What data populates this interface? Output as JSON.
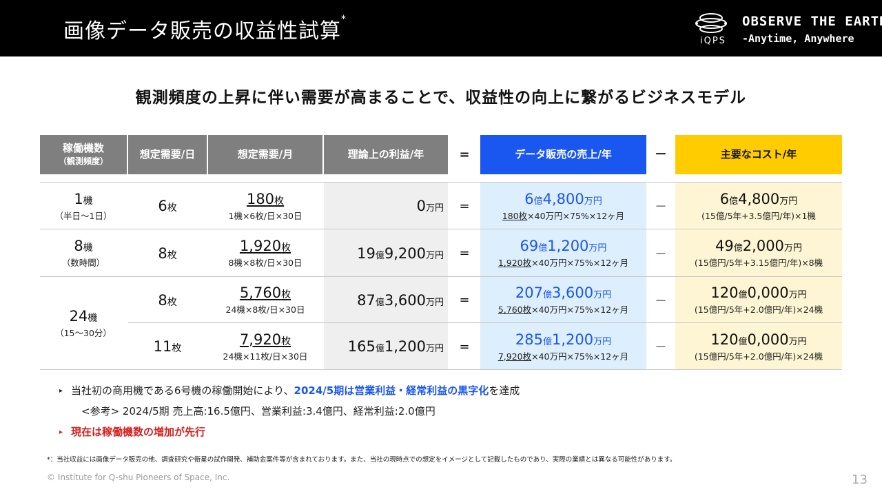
{
  "header": {
    "title": "画像データ販売の収益性試算",
    "title_mark": "*",
    "logo_text": "iQPS",
    "tagline_1": "OBSERVE THE EARTH",
    "tagline_2": "-Anytime, Anywhere"
  },
  "subtitle": "観測頻度の上昇に伴い需要が高まることで、収益性の向上に繋がるビジネスモデル",
  "table": {
    "headers": {
      "units_line1": "稼働機数",
      "units_line2": "（観測頻度）",
      "demand_day": "想定需要/日",
      "demand_month": "想定需要/月",
      "profit_year": "理論上の利益/年",
      "equals": "=",
      "sales_year": "データ販売の売上/年",
      "minus": "－",
      "cost_year": "主要なコスト/年"
    },
    "rows": [
      {
        "units": "1",
        "units_unit": "機",
        "frequency": "（半日〜1日）",
        "day": "6",
        "day_unit": "枚",
        "month": "180",
        "month_unit": "枚",
        "month_formula": "1機×6枚/日×30日",
        "profit": "0",
        "profit_unit": "万円",
        "eq": "=",
        "sales_oku": "6",
        "sales_oku_unit": "億",
        "sales_man": "4,800",
        "sales_man_unit": "万円",
        "sales_qty": "180枚",
        "sales_formula": "×40万円×75%×12ヶ月",
        "minus": "－",
        "cost_oku": "6",
        "cost_oku_unit": "億",
        "cost_man": "4,800",
        "cost_man_unit": "万円",
        "cost_formula": "(15億/5年+3.5億円/年)×1機"
      },
      {
        "units": "8",
        "units_unit": "機",
        "frequency": "（数時間）",
        "day": "8",
        "day_unit": "枚",
        "month": "1,920",
        "month_unit": "枚",
        "month_formula": "8機×8枚/日×30日",
        "profit_oku": "19",
        "profit_oku_unit": "億",
        "profit": "9,200",
        "profit_unit": "万円",
        "eq": "=",
        "sales_oku": "69",
        "sales_oku_unit": "億",
        "sales_man": "1,200",
        "sales_man_unit": "万円",
        "sales_qty": "1,920枚",
        "sales_formula": "×40万円×75%×12ヶ月",
        "minus": "－",
        "cost_oku": "49",
        "cost_oku_unit": "億",
        "cost_man": "2,000",
        "cost_man_unit": "万円",
        "cost_formula": "(15億円/5年+3.15億円/年)×8機"
      },
      {
        "day": "8",
        "day_unit": "枚",
        "month": "5,760",
        "month_unit": "枚",
        "month_formula": "24機×8枚/日×30日",
        "profit_oku": "87",
        "profit_oku_unit": "億",
        "profit": "3,600",
        "profit_unit": "万円",
        "eq": "=",
        "sales_oku": "207",
        "sales_oku_unit": "億",
        "sales_man": "3,600",
        "sales_man_unit": "万円",
        "sales_qty": "5,760枚",
        "sales_formula": "×40万円×75%×12ヶ月",
        "minus": "－",
        "cost_oku": "120",
        "cost_oku_unit": "億",
        "cost_man": "0,000",
        "cost_man_unit": "万円",
        "cost_formula": "(15億円/5年+2.0億円/年)×24機"
      },
      {
        "day": "11",
        "day_unit": "枚",
        "month": "7,920",
        "month_unit": "枚",
        "month_formula": "24機×11枚/日×30日",
        "profit_oku": "165",
        "profit_oku_unit": "億",
        "profit": "1,200",
        "profit_unit": "万円",
        "eq": "=",
        "sales_oku": "285",
        "sales_oku_unit": "億",
        "sales_man": "1,200",
        "sales_man_unit": "万円",
        "sales_qty": "7,920枚",
        "sales_formula": "×40万円×75%×12ヶ月",
        "minus": "－",
        "cost_oku": "120",
        "cost_oku_unit": "億",
        "cost_man": "0,000",
        "cost_man_unit": "万円",
        "cost_formula": "(15億円/5年+2.0億円/年)×24機"
      }
    ],
    "merged_group": {
      "units": "24",
      "units_unit": "機",
      "frequency": "（15〜30分）"
    }
  },
  "notes": {
    "bullet1_pre": "当社初の商用機である6号機の稼働開始により、",
    "bullet1_hl": "2024/5期は営業利益・経常利益の黒字化",
    "bullet1_post": "を達成",
    "reference": "<参考> 2024/5期 売上高:16.5億円、営業利益:3.4億円、経常利益:2.0億円",
    "bullet2": "現在は稼働機数の増加が先行",
    "marker": "▸"
  },
  "footnote": "*：当社収益には画像データ販売の他、調査研究や衛星の試作開発、補助金案件等が含まれております。また、当社の現時点での想定をイメージとして記載したものであり、実際の業績とは異なる可能性があります。",
  "copyright": "© Institute for Q-shu Pioneers of Space, Inc.",
  "page_number": "13"
}
